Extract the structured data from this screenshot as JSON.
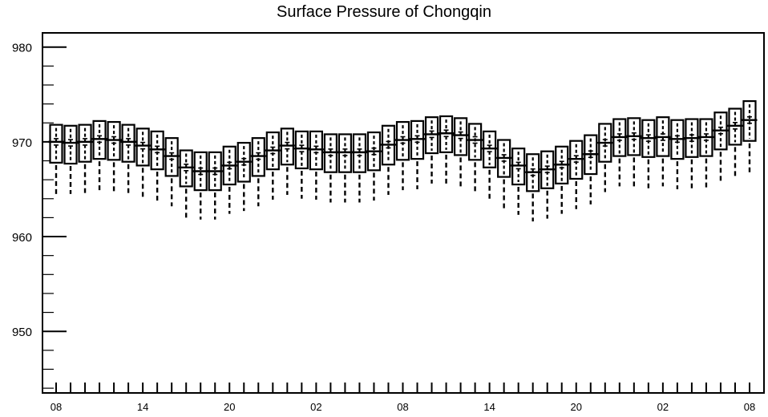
{
  "chart_data": {
    "type": "box",
    "title": "Surface Pressure of Chongqin",
    "xlabel": "",
    "ylabel": "",
    "ylim": [
      943.5,
      981.5
    ],
    "y_ticks": [
      950,
      960,
      970,
      980
    ],
    "y_tick_labels": [
      "950",
      "960",
      "970",
      "980"
    ],
    "x_tick_labels": [
      "08",
      "14",
      "20",
      "02",
      "08",
      "14",
      "20",
      "02",
      "08"
    ],
    "x_tick_label_positions": [
      0,
      6,
      12,
      18,
      24,
      30,
      36,
      42,
      48
    ],
    "x_count": 49,
    "grid": false,
    "legend": "none",
    "series": [
      {
        "q1": [
          967.8,
          967.7,
          967.9,
          968.2,
          968.1,
          967.9,
          967.5,
          967.1,
          966.4,
          965.3,
          964.9,
          964.9,
          965.5,
          965.8,
          966.4,
          967.1,
          967.6,
          967.2,
          967.1,
          966.8,
          966.8,
          966.8,
          967.0,
          967.6,
          968.1,
          968.2,
          968.8,
          968.9,
          968.6,
          968.1,
          967.3,
          966.3,
          965.5,
          964.8,
          965.1,
          965.6,
          966.1,
          966.6,
          967.9,
          968.5,
          968.6,
          968.4,
          968.5,
          968.2,
          968.4,
          968.5,
          969.2,
          969.7,
          970.1
        ],
        "median": [
          970.0,
          969.9,
          970.0,
          970.3,
          970.2,
          970.0,
          969.6,
          969.2,
          968.5,
          967.3,
          966.9,
          966.9,
          967.5,
          967.9,
          968.5,
          969.1,
          969.6,
          969.3,
          969.2,
          968.9,
          968.9,
          968.9,
          969.0,
          969.7,
          970.2,
          970.3,
          970.8,
          970.9,
          970.7,
          970.2,
          969.3,
          968.3,
          967.5,
          966.8,
          967.1,
          967.6,
          968.2,
          968.7,
          969.9,
          970.5,
          970.6,
          970.4,
          970.5,
          970.3,
          970.4,
          970.5,
          971.2,
          971.7,
          972.3
        ],
        "q3": [
          971.8,
          971.7,
          971.8,
          972.2,
          972.1,
          971.8,
          971.4,
          971.1,
          970.4,
          969.1,
          968.9,
          968.9,
          969.5,
          969.9,
          970.4,
          971.0,
          971.4,
          971.1,
          971.1,
          970.8,
          970.8,
          970.8,
          971.0,
          971.7,
          972.1,
          972.2,
          972.6,
          972.7,
          972.5,
          971.9,
          971.1,
          970.2,
          969.3,
          968.7,
          969.0,
          969.5,
          970.1,
          970.7,
          971.9,
          972.4,
          972.5,
          972.3,
          972.6,
          972.3,
          972.4,
          972.4,
          973.1,
          973.5,
          974.3
        ],
        "lower_whisker": [
          964.5,
          964.5,
          964.6,
          964.9,
          964.8,
          964.6,
          964.2,
          963.8,
          963.2,
          962.0,
          961.8,
          961.8,
          962.4,
          962.7,
          963.2,
          963.9,
          964.4,
          964.0,
          963.9,
          963.6,
          963.6,
          963.6,
          963.8,
          964.4,
          964.9,
          965.0,
          965.6,
          965.6,
          965.3,
          964.8,
          964.0,
          963.0,
          962.3,
          961.6,
          961.9,
          962.4,
          962.9,
          963.4,
          964.7,
          965.3,
          965.3,
          965.1,
          965.3,
          965.0,
          965.1,
          965.2,
          965.9,
          966.4,
          966.8
        ],
        "upper_whisker": [
          971.8,
          971.7,
          971.8,
          972.2,
          972.1,
          971.8,
          971.4,
          971.1,
          970.4,
          969.1,
          968.9,
          968.9,
          969.5,
          969.9,
          970.4,
          971.0,
          971.4,
          971.1,
          971.1,
          970.8,
          970.8,
          970.8,
          971.0,
          971.7,
          972.1,
          972.2,
          972.6,
          972.7,
          972.5,
          971.9,
          971.1,
          970.2,
          969.3,
          968.7,
          969.0,
          969.5,
          970.1,
          970.7,
          971.9,
          972.4,
          972.5,
          972.3,
          972.6,
          972.3,
          972.4,
          972.4,
          973.1,
          973.5,
          974.3
        ]
      }
    ]
  }
}
